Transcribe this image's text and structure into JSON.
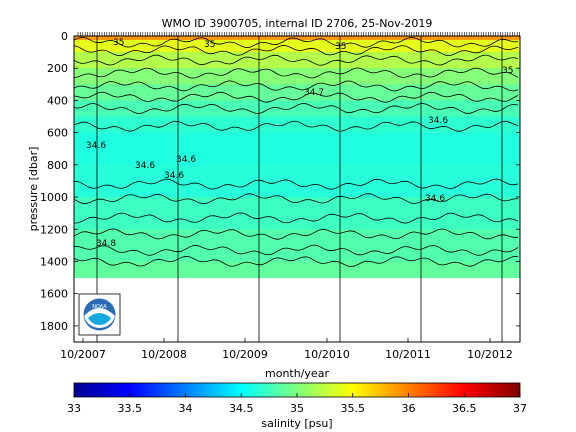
{
  "chart_data": {
    "type": "heatmap",
    "title": "WMO ID 3900705, internal ID 2706, 25-Nov-2019",
    "xlabel": "month/year",
    "ylabel": "pressure [dbar]",
    "colorbar_label": "salinity [psu]",
    "x_ticks": [
      "10/2007",
      "10/2008",
      "10/2009",
      "10/2010",
      "10/2011",
      "10/2012"
    ],
    "y_ticks": [
      "0",
      "200",
      "400",
      "600",
      "800",
      "1000",
      "1200",
      "1400",
      "1600",
      "1800"
    ],
    "y_tick_values": [
      0,
      200,
      400,
      600,
      800,
      1000,
      1200,
      1400,
      1600,
      1800
    ],
    "ylim": [
      0,
      1900
    ],
    "y_reversed": true,
    "colorbar_ticks": [
      "33",
      "33.5",
      "34",
      "34.5",
      "35",
      "35.5",
      "36",
      "36.5",
      "37"
    ],
    "colorbar_range": [
      33,
      37
    ],
    "contour_labels": [
      "34.6",
      "34.6",
      "34.6",
      "34.6",
      "34.6",
      "34.6",
      "34.7",
      "35",
      "35",
      "35",
      "35",
      "34.8"
    ],
    "salinity_profile": [
      {
        "pressure": 0,
        "salinity": 35.5
      },
      {
        "pressure": 100,
        "salinity": 35.3
      },
      {
        "pressure": 200,
        "salinity": 35.1
      },
      {
        "pressure": 300,
        "salinity": 34.95
      },
      {
        "pressure": 400,
        "salinity": 34.85
      },
      {
        "pressure": 500,
        "salinity": 34.72
      },
      {
        "pressure": 600,
        "salinity": 34.64
      },
      {
        "pressure": 800,
        "salinity": 34.6
      },
      {
        "pressure": 1000,
        "salinity": 34.7
      },
      {
        "pressure": 1200,
        "salinity": 34.78
      },
      {
        "pressure": 1400,
        "salinity": 34.86
      },
      {
        "pressure": 1500,
        "salinity": 34.9
      }
    ],
    "data_max_pressure": 1500,
    "logo": "noaa-logo"
  }
}
